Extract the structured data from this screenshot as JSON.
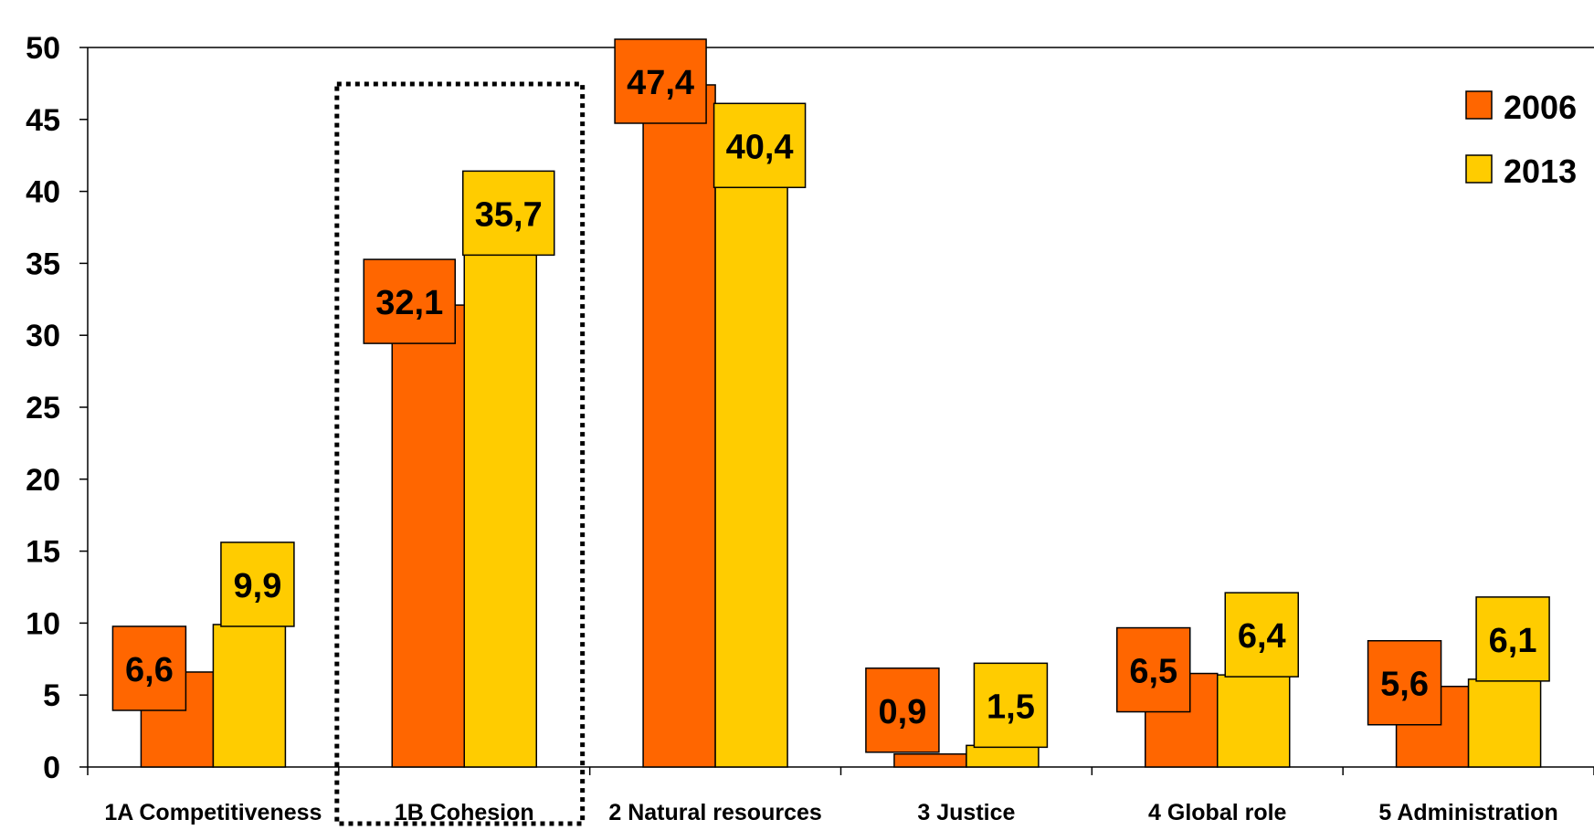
{
  "chart_data": {
    "type": "bar",
    "categories": [
      "1A Competitiveness",
      "1B Cohesion",
      "2 Natural resources",
      "3 Justice",
      "4 Global role",
      "5 Administration"
    ],
    "series": [
      {
        "name": "2006",
        "values": [
          6.6,
          32.1,
          47.4,
          0.9,
          6.5,
          5.6
        ],
        "labels": [
          "6,6",
          "32,1",
          "47,4",
          "0,9",
          "6,5",
          "5,6"
        ],
        "color": "#ff6600"
      },
      {
        "name": "2013",
        "values": [
          9.9,
          35.7,
          40.4,
          1.5,
          6.4,
          6.1
        ],
        "labels": [
          "9,9",
          "35,7",
          "40,4",
          "1,5",
          "6,4",
          "6,1"
        ],
        "color": "#ffcc00"
      }
    ],
    "yticks": [
      "0",
      "5",
      "10",
      "15",
      "20",
      "25",
      "30",
      "35",
      "40",
      "45",
      "50"
    ],
    "ylim": [
      0,
      50
    ],
    "title": "",
    "xlabel": "",
    "ylabel": "",
    "grid": false,
    "legend": "top-right",
    "highlighted_category": "1B Cohesion"
  }
}
